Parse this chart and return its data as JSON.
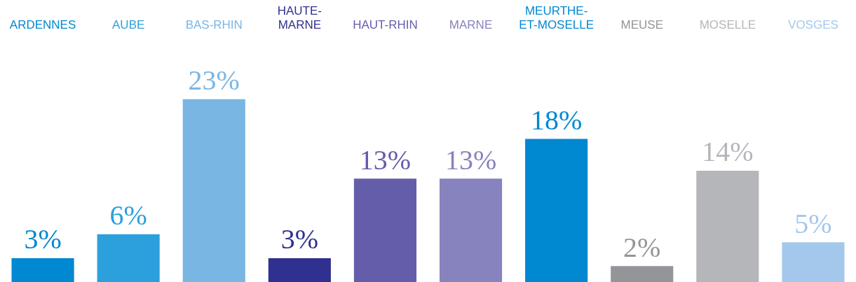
{
  "chart_data": {
    "type": "bar",
    "categories": [
      "ARDENNES",
      "AUBE",
      "BAS-RHIN",
      "HAUTE-MARNE",
      "HAUT-RHIN",
      "MARNE",
      "MEURTHE-ET-MOSELLE",
      "MEUSE",
      "MOSELLE",
      "VOSGES"
    ],
    "values": [
      3,
      6,
      23,
      3,
      13,
      13,
      18,
      2,
      14,
      5
    ],
    "colors": [
      "#0088d1",
      "#2ca0dc",
      "#7ab6e4",
      "#303090",
      "#645eaa",
      "#8783be",
      "#0088d1",
      "#939598",
      "#b5b6ba",
      "#a3c8ec"
    ],
    "value_labels": [
      "3%",
      "6%",
      "23%",
      "3%",
      "13%",
      "13%",
      "18%",
      "2%",
      "14%",
      "5%"
    ],
    "grid": false,
    "legend": false
  }
}
